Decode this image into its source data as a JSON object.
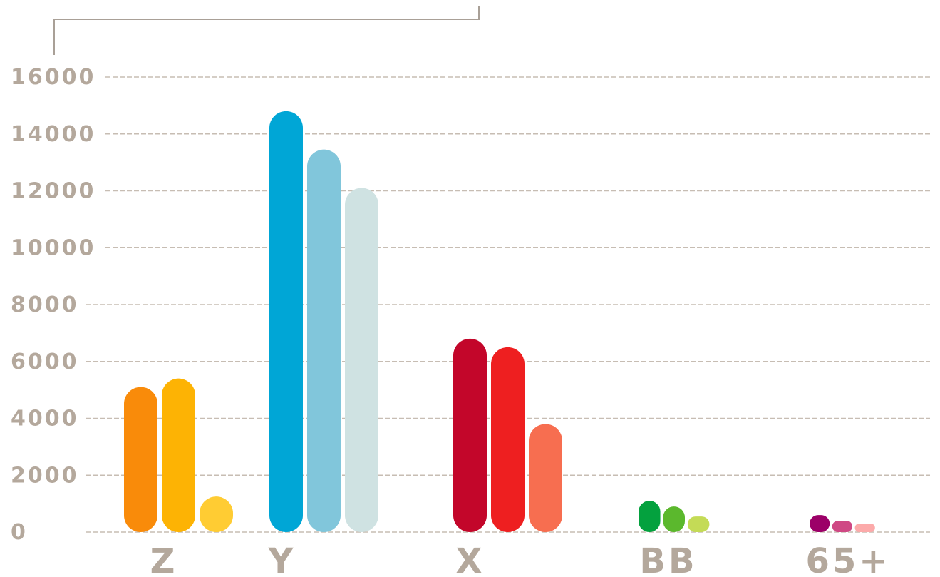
{
  "chart_data": {
    "type": "bar",
    "title": "",
    "xlabel": "",
    "ylabel": "",
    "ylim": [
      0,
      16000
    ],
    "yticks": [
      "16000",
      "14000",
      "12000",
      "10000",
      "8000",
      "6000",
      "4000",
      "2000",
      "0"
    ],
    "grid": true,
    "legend": "none",
    "categories": [
      "Z",
      "Y",
      "X",
      "BB",
      "65+"
    ],
    "series": [
      {
        "values": [
          5100,
          14800,
          6800,
          1100,
          600
        ]
      },
      {
        "values": [
          5400,
          13450,
          6500,
          900,
          400
        ]
      },
      {
        "values": [
          1250,
          12100,
          3800,
          550,
          300
        ]
      }
    ],
    "colors": {
      "Z": [
        "#f98b0a",
        "#fdb304",
        "#ffcc33"
      ],
      "Y": [
        "#00a6d6",
        "#81c6db",
        "#cfe2e2"
      ],
      "X": [
        "#c3062a",
        "#ee1f20",
        "#f76e50"
      ],
      "BB": [
        "#04a13e",
        "#5bb82d",
        "#c4db56"
      ],
      "65+": [
        "#9c0068",
        "#cf4884",
        "#fcaaaa"
      ]
    }
  }
}
